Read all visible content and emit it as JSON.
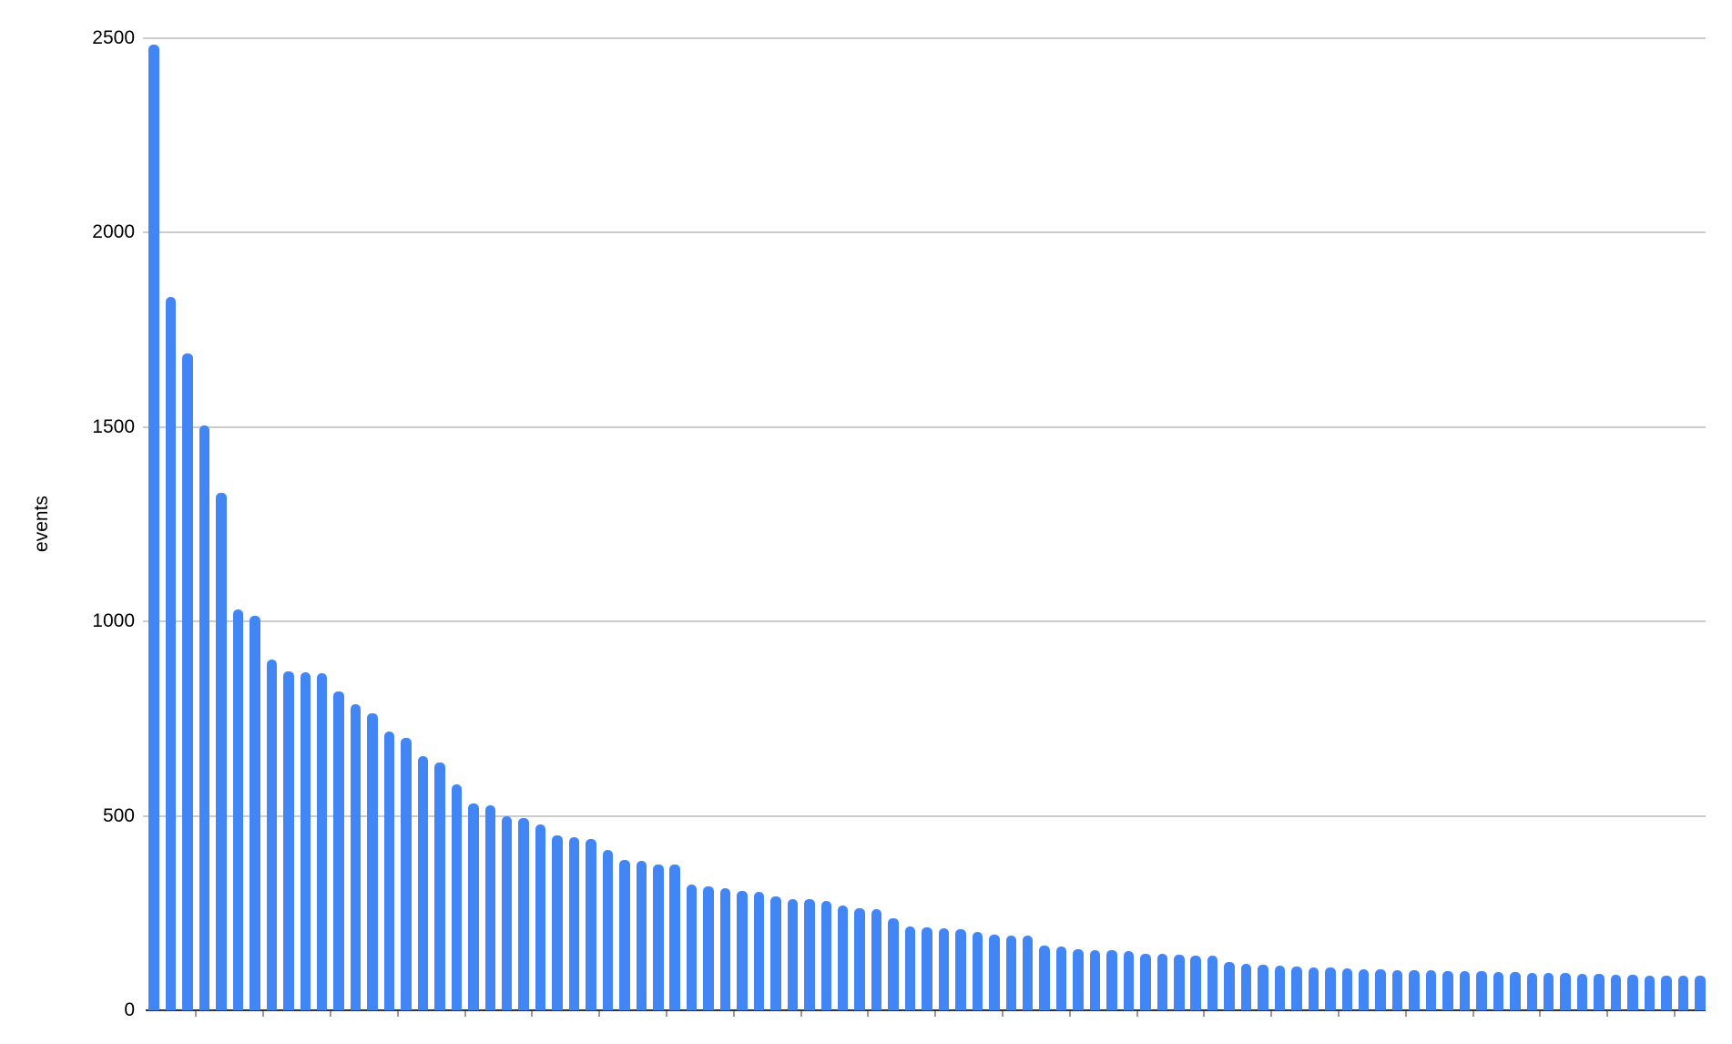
{
  "chart_data": {
    "type": "bar",
    "title": "",
    "xlabel": "",
    "ylabel": "events",
    "ylim": [
      0,
      2500
    ],
    "grid": true,
    "legend_position": "none",
    "x_tick_labels": [],
    "x_ticks_every_n_bars": 4,
    "ytick_values": [
      0,
      500,
      1000,
      1500,
      2000,
      2500
    ],
    "ytick_labels": [
      "0",
      "500",
      "1000",
      "1500",
      "2000",
      "2500"
    ],
    "n_bars": 93,
    "values": [
      2483,
      1835,
      1690,
      1504,
      1330,
      1031,
      1015,
      902,
      871,
      869,
      867,
      819,
      787,
      764,
      716,
      701,
      653,
      637,
      581,
      533,
      528,
      499,
      495,
      477,
      450,
      445,
      440,
      413,
      387,
      385,
      375,
      374,
      323,
      319,
      314,
      308,
      305,
      292,
      287,
      286,
      281,
      270,
      262,
      260,
      236,
      215,
      214,
      211,
      209,
      202,
      194,
      193,
      192,
      166,
      163,
      156,
      155,
      154,
      152,
      146,
      145,
      143,
      141,
      140,
      124,
      119,
      118,
      114,
      112,
      110,
      109,
      108,
      106,
      105,
      104,
      103,
      102,
      101,
      101,
      100,
      99,
      98,
      97,
      96,
      95,
      94,
      93,
      92,
      91,
      90,
      89,
      88,
      88
    ],
    "colors": {
      "bar": "#4285f4",
      "gridline": "#cccccc",
      "baseline": "#333333",
      "x_tick": "#999999",
      "label_text": "#000000",
      "background": "#ffffff"
    }
  }
}
